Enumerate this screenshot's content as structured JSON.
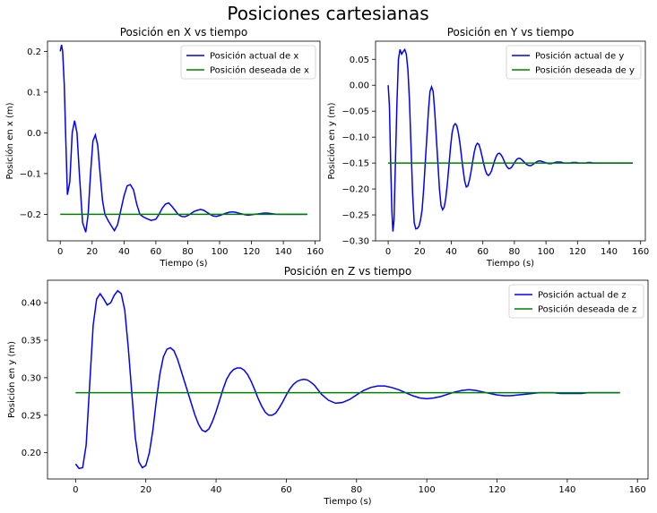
{
  "figure": {
    "suptitle": "Posiciones cartesianas"
  },
  "chart_data": [
    {
      "type": "line",
      "title": "Posición en X vs tiempo",
      "xlabel": "Tiempo (s)",
      "ylabel": "Posición en x (m)",
      "xlim": [
        -8,
        163
      ],
      "ylim": [
        -0.265,
        0.225
      ],
      "xticks": [
        0,
        20,
        40,
        60,
        80,
        100,
        120,
        140,
        160
      ],
      "yticks": [
        -0.2,
        -0.1,
        0.0,
        0.1,
        0.2
      ],
      "ytick_labels": [
        "−0.2",
        "−0.1",
        "0.0",
        "0.1",
        "0.2"
      ],
      "legend_position": "top-right",
      "series": [
        {
          "name": "Posición actual de x",
          "color": "#0000ff",
          "x": [
            0,
            0.8,
            1.5,
            2.5,
            3.5,
            4.5,
            6,
            7.5,
            9,
            10.5,
            12,
            14,
            16,
            17.5,
            19,
            20.5,
            22,
            23.5,
            25,
            26.5,
            28,
            30,
            32,
            34,
            36,
            38,
            40,
            42,
            44,
            46,
            48,
            50,
            52,
            54,
            57,
            60,
            62,
            64,
            66,
            68,
            70,
            72,
            74,
            76,
            78,
            80,
            82,
            84,
            86,
            88,
            90,
            92,
            94,
            96,
            98,
            100,
            102,
            104,
            106,
            108,
            110,
            112,
            114,
            116,
            118,
            120,
            122,
            124,
            126,
            128,
            130,
            132,
            134,
            136,
            138,
            140,
            142,
            144,
            146,
            148,
            150,
            152,
            155
          ],
          "y": [
            0.2,
            0.216,
            0.2,
            0.12,
            -0.02,
            -0.152,
            -0.12,
            0.0,
            0.03,
            0.0,
            -0.1,
            -0.22,
            -0.244,
            -0.2,
            -0.1,
            -0.02,
            -0.005,
            -0.03,
            -0.1,
            -0.165,
            -0.2,
            -0.215,
            -0.228,
            -0.24,
            -0.225,
            -0.19,
            -0.155,
            -0.13,
            -0.127,
            -0.14,
            -0.175,
            -0.2,
            -0.206,
            -0.21,
            -0.215,
            -0.212,
            -0.2,
            -0.185,
            -0.175,
            -0.172,
            -0.18,
            -0.19,
            -0.2,
            -0.205,
            -0.206,
            -0.203,
            -0.198,
            -0.193,
            -0.19,
            -0.188,
            -0.19,
            -0.195,
            -0.2,
            -0.204,
            -0.205,
            -0.203,
            -0.2,
            -0.197,
            -0.195,
            -0.194,
            -0.195,
            -0.197,
            -0.199,
            -0.201,
            -0.202,
            -0.201,
            -0.2,
            -0.199,
            -0.198,
            -0.197,
            -0.197,
            -0.198,
            -0.199,
            -0.2,
            -0.2,
            -0.2,
            -0.2,
            -0.2,
            -0.2,
            -0.2,
            -0.2,
            -0.2,
            -0.2
          ]
        },
        {
          "name": "Posición deseada de x",
          "color": "#008000",
          "x": [
            0,
            155
          ],
          "y": [
            -0.2,
            -0.2
          ]
        }
      ]
    },
    {
      "type": "line",
      "title": "Posición en Y vs tiempo",
      "xlabel": "Tiempo (s)",
      "ylabel": "Posición en y (m)",
      "xlim": [
        -8,
        163
      ],
      "ylim": [
        -0.3,
        0.085
      ],
      "xticks": [
        0,
        20,
        40,
        60,
        80,
        100,
        120,
        140,
        160
      ],
      "yticks": [
        -0.3,
        -0.25,
        -0.2,
        -0.15,
        -0.1,
        -0.05,
        0.0,
        0.05
      ],
      "ytick_labels": [
        "−0.30",
        "−0.25",
        "−0.20",
        "−0.15",
        "−0.10",
        "−0.05",
        "0.00",
        "0.05"
      ],
      "legend_position": "top-right",
      "series": [
        {
          "name": "Posición actual de y",
          "color": "#0000ff",
          "x": [
            0,
            0.8,
            1.5,
            2.3,
            3,
            3.7,
            4.5,
            5.5,
            6.5,
            7.5,
            8.5,
            9.5,
            10.5,
            11.5,
            12.5,
            13.5,
            14.5,
            15.5,
            16.5,
            17.5,
            18.5,
            19.5,
            20.5,
            21.5,
            22.5,
            23.5,
            24.5,
            25.5,
            26.5,
            27.5,
            28.5,
            29.5,
            30.5,
            31.5,
            32.5,
            33.5,
            34.5,
            35.5,
            36.5,
            37.5,
            38.5,
            39.5,
            40.5,
            41.5,
            42.5,
            43.5,
            44.5,
            45.5,
            46.5,
            47.5,
            48.5,
            49.5,
            50.5,
            51.5,
            52.5,
            53.5,
            54.5,
            55.5,
            56.5,
            57.5,
            58.5,
            59.5,
            60.5,
            61.5,
            62.5,
            63.5,
            64.5,
            65.5,
            66.5,
            67.5,
            68.5,
            69.5,
            70.5,
            71.5,
            72.5,
            73.5,
            74.5,
            75.5,
            76.5,
            77.5,
            78.5,
            79.5,
            80.5,
            81.5,
            82.5,
            83.5,
            84.5,
            85.5,
            86.5,
            87.5,
            88.5,
            89.5,
            90.5,
            91.5,
            92.5,
            93.5,
            94.5,
            95.5,
            96.5,
            97.5,
            98.5,
            99.5,
            100.5,
            101.5,
            102.5,
            103.5,
            104.5,
            105.5,
            106.5,
            107.5,
            108.5,
            109.5,
            110.5,
            111.5,
            112.5,
            113.5,
            114.5,
            115.5,
            116.5,
            117.5,
            118.5,
            119.5,
            120.5,
            121.5,
            122.5,
            123.5,
            124.5,
            125.5,
            126.5,
            127.5,
            128.5,
            129.5,
            130.5,
            131.5,
            132.5,
            133.5,
            134.5,
            135.5,
            136.5,
            137.5,
            138.5,
            139.5,
            140.5,
            141.5,
            142.5,
            143.5,
            144.5,
            145.5,
            146.5,
            147.5,
            148.5,
            149.5,
            150.5,
            151.5,
            152.5,
            153.5,
            155
          ],
          "y": [
            0.0,
            -0.04,
            -0.14,
            -0.24,
            -0.282,
            -0.26,
            -0.16,
            -0.04,
            0.05,
            0.069,
            0.06,
            0.065,
            0.069,
            0.06,
            0.03,
            -0.03,
            -0.12,
            -0.21,
            -0.265,
            -0.277,
            -0.276,
            -0.272,
            -0.26,
            -0.24,
            -0.2,
            -0.15,
            -0.1,
            -0.05,
            -0.012,
            -0.003,
            -0.012,
            -0.05,
            -0.1,
            -0.15,
            -0.2,
            -0.232,
            -0.24,
            -0.235,
            -0.218,
            -0.19,
            -0.155,
            -0.12,
            -0.092,
            -0.078,
            -0.074,
            -0.078,
            -0.092,
            -0.112,
            -0.138,
            -0.163,
            -0.185,
            -0.196,
            -0.194,
            -0.183,
            -0.167,
            -0.148,
            -0.13,
            -0.117,
            -0.112,
            -0.114,
            -0.124,
            -0.137,
            -0.151,
            -0.163,
            -0.171,
            -0.174,
            -0.171,
            -0.165,
            -0.155,
            -0.145,
            -0.137,
            -0.132,
            -0.131,
            -0.134,
            -0.139,
            -0.146,
            -0.153,
            -0.158,
            -0.161,
            -0.16,
            -0.157,
            -0.152,
            -0.147,
            -0.143,
            -0.141,
            -0.141,
            -0.143,
            -0.146,
            -0.149,
            -0.152,
            -0.154,
            -0.155,
            -0.155,
            -0.153,
            -0.151,
            -0.149,
            -0.147,
            -0.146,
            -0.146,
            -0.147,
            -0.148,
            -0.149,
            -0.15,
            -0.151,
            -0.151,
            -0.151,
            -0.15,
            -0.149,
            -0.148,
            -0.148,
            -0.148,
            -0.148,
            -0.149,
            -0.15,
            -0.15,
            -0.15,
            -0.15,
            -0.15,
            -0.149,
            -0.149,
            -0.149,
            -0.149,
            -0.15,
            -0.15,
            -0.15,
            -0.15,
            -0.15,
            -0.15,
            -0.149,
            -0.149,
            -0.149,
            -0.15,
            -0.15,
            -0.15,
            -0.15,
            -0.15,
            -0.15,
            -0.15,
            -0.15,
            -0.15,
            -0.15,
            -0.15,
            -0.15,
            -0.15,
            -0.15,
            -0.15,
            -0.15,
            -0.15,
            -0.15,
            -0.15,
            -0.15,
            -0.15,
            -0.15,
            -0.15,
            -0.15,
            -0.15,
            -0.15
          ]
        },
        {
          "name": "Posición deseada de y",
          "color": "#008000",
          "x": [
            0,
            155
          ],
          "y": [
            -0.15,
            -0.15
          ]
        }
      ]
    },
    {
      "type": "line",
      "title": "Posición en Z vs tiempo",
      "xlabel": "Tiempo (s)",
      "ylabel": "Posición en y (m)",
      "xlim": [
        -8,
        163
      ],
      "ylim": [
        0.165,
        0.43
      ],
      "xticks": [
        0,
        20,
        40,
        60,
        80,
        100,
        120,
        140,
        160
      ],
      "yticks": [
        0.2,
        0.25,
        0.3,
        0.35,
        0.4
      ],
      "ytick_labels": [
        "0.20",
        "0.25",
        "0.30",
        "0.35",
        "0.40"
      ],
      "legend_position": "top-right",
      "series": [
        {
          "name": "Posición actual de z",
          "color": "#0000ff",
          "x": [
            0,
            1,
            2,
            3,
            4,
            5,
            6,
            7,
            8,
            9,
            10,
            11,
            12,
            13,
            14,
            15,
            16,
            17,
            18,
            19,
            20,
            21,
            22,
            23,
            24,
            25,
            26,
            27,
            28,
            29,
            30,
            31,
            32,
            33,
            34,
            35,
            36,
            37,
            38,
            39,
            40,
            41,
            42,
            43,
            44,
            45,
            46,
            47,
            48,
            49,
            50,
            51,
            52,
            53,
            54,
            55,
            56,
            57,
            58,
            59,
            60,
            61,
            62,
            63,
            64,
            65,
            66,
            67,
            68,
            69,
            70,
            72,
            74,
            76,
            78,
            80,
            82,
            84,
            86,
            88,
            90,
            92,
            94,
            96,
            98,
            100,
            102,
            104,
            106,
            108,
            110,
            112,
            114,
            116,
            118,
            120,
            122,
            124,
            126,
            128,
            130,
            132,
            134,
            136,
            138,
            140,
            142,
            144,
            146,
            148,
            150,
            152,
            155
          ],
          "y": [
            0.185,
            0.179,
            0.18,
            0.21,
            0.29,
            0.37,
            0.405,
            0.412,
            0.405,
            0.397,
            0.4,
            0.41,
            0.416,
            0.412,
            0.39,
            0.34,
            0.28,
            0.22,
            0.188,
            0.18,
            0.183,
            0.2,
            0.23,
            0.27,
            0.305,
            0.328,
            0.338,
            0.34,
            0.336,
            0.325,
            0.31,
            0.295,
            0.28,
            0.265,
            0.25,
            0.238,
            0.23,
            0.228,
            0.232,
            0.242,
            0.255,
            0.27,
            0.285,
            0.298,
            0.306,
            0.311,
            0.313,
            0.313,
            0.31,
            0.304,
            0.295,
            0.284,
            0.272,
            0.262,
            0.254,
            0.25,
            0.25,
            0.253,
            0.26,
            0.268,
            0.277,
            0.285,
            0.291,
            0.295,
            0.297,
            0.298,
            0.297,
            0.294,
            0.29,
            0.284,
            0.278,
            0.27,
            0.266,
            0.267,
            0.271,
            0.277,
            0.283,
            0.287,
            0.289,
            0.289,
            0.287,
            0.284,
            0.28,
            0.276,
            0.273,
            0.272,
            0.273,
            0.275,
            0.278,
            0.281,
            0.283,
            0.284,
            0.283,
            0.281,
            0.279,
            0.277,
            0.276,
            0.276,
            0.277,
            0.278,
            0.279,
            0.28,
            0.28,
            0.28,
            0.279,
            0.279,
            0.279,
            0.279,
            0.28,
            0.28,
            0.28,
            0.28,
            0.28
          ]
        },
        {
          "name": "Posición deseada de z",
          "color": "#008000",
          "x": [
            0,
            155
          ],
          "y": [
            0.28,
            0.28
          ]
        }
      ]
    }
  ]
}
